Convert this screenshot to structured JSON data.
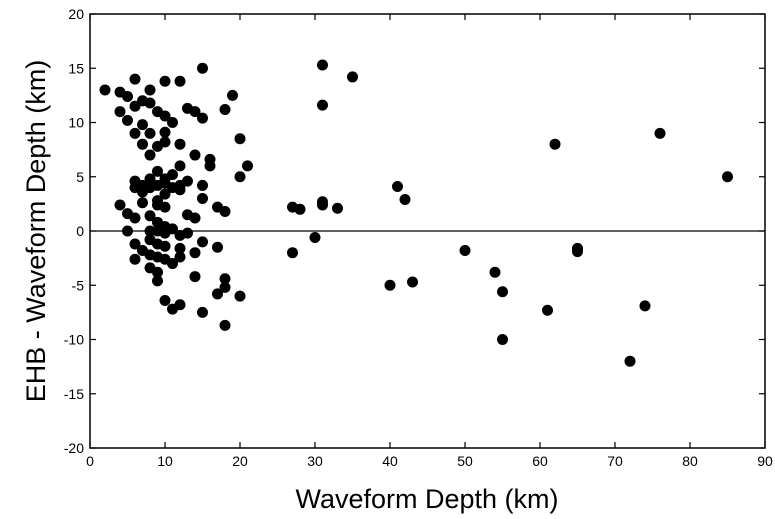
{
  "chart_data": {
    "type": "scatter",
    "title": "",
    "xlabel": "Waveform Depth (km)",
    "ylabel": "EHB - Waveform Depth (km)",
    "xlim": [
      0,
      90
    ],
    "ylim": [
      -20,
      20
    ],
    "xticks": [
      0,
      10,
      20,
      30,
      40,
      50,
      60,
      70,
      80,
      90
    ],
    "yticks": [
      -20,
      -15,
      -10,
      -5,
      0,
      5,
      10,
      15,
      20
    ],
    "zero_line": true,
    "grid": false,
    "legend": "none",
    "marker_color": "#000000",
    "series": [
      {
        "points": [
          [
            2,
            13
          ],
          [
            4,
            12.8
          ],
          [
            5,
            12.4
          ],
          [
            6,
            14
          ],
          [
            4,
            11
          ],
          [
            6,
            11.5
          ],
          [
            5,
            10.2
          ],
          [
            6,
            9
          ],
          [
            8,
            13
          ],
          [
            7,
            12
          ],
          [
            8,
            11.8
          ],
          [
            10,
            13.8
          ],
          [
            12,
            13.8
          ],
          [
            13,
            11.3
          ],
          [
            14,
            11
          ],
          [
            15,
            10.4
          ],
          [
            15,
            15
          ],
          [
            19,
            12.5
          ],
          [
            18,
            11.2
          ],
          [
            20,
            8.5
          ],
          [
            21,
            6
          ],
          [
            20,
            5
          ],
          [
            16,
            6.6
          ],
          [
            16,
            6
          ],
          [
            14,
            7
          ],
          [
            12,
            8
          ],
          [
            10,
            10.6
          ],
          [
            9,
            11
          ],
          [
            11,
            10
          ],
          [
            7,
            9.8
          ],
          [
            8,
            9
          ],
          [
            10,
            9.1
          ],
          [
            7,
            8
          ],
          [
            9,
            7.8
          ],
          [
            10,
            8.2
          ],
          [
            8,
            7
          ],
          [
            12,
            6
          ],
          [
            15,
            4.2
          ],
          [
            15,
            3
          ],
          [
            13,
            4.6
          ],
          [
            12,
            4.2
          ],
          [
            11,
            5.2
          ],
          [
            10,
            4.8
          ],
          [
            9,
            5.5
          ],
          [
            8,
            4.8
          ],
          [
            7,
            4.2
          ],
          [
            6,
            4.6
          ],
          [
            6,
            4
          ],
          [
            7,
            3.6
          ],
          [
            8,
            4
          ],
          [
            9,
            4.2
          ],
          [
            10,
            4.4
          ],
          [
            11,
            4
          ],
          [
            12,
            3.8
          ],
          [
            10,
            3.4
          ],
          [
            9,
            2.8
          ],
          [
            7,
            2.6
          ],
          [
            4,
            2.4
          ],
          [
            5,
            1.6
          ],
          [
            6,
            1.2
          ],
          [
            8,
            1.4
          ],
          [
            9,
            2.4
          ],
          [
            10,
            2.2
          ],
          [
            13,
            1.5
          ],
          [
            14,
            1.2
          ],
          [
            17,
            2.2
          ],
          [
            18,
            1.8
          ],
          [
            9,
            0.8
          ],
          [
            10,
            0.4
          ],
          [
            5,
            0
          ],
          [
            8,
            0
          ],
          [
            9,
            0
          ],
          [
            10,
            -0.2
          ],
          [
            11,
            0.2
          ],
          [
            12,
            -0.4
          ],
          [
            13,
            -0.2
          ],
          [
            15,
            -1
          ],
          [
            17,
            -1.5
          ],
          [
            8,
            -0.8
          ],
          [
            9,
            -1.2
          ],
          [
            10,
            -1.4
          ],
          [
            12,
            -1.6
          ],
          [
            14,
            -2
          ],
          [
            6,
            -1.2
          ],
          [
            7,
            -1.8
          ],
          [
            8,
            -2.2
          ],
          [
            9,
            -2.4
          ],
          [
            10,
            -2.6
          ],
          [
            11,
            -3
          ],
          [
            12,
            -2.4
          ],
          [
            6,
            -2.6
          ],
          [
            8,
            -3.4
          ],
          [
            9,
            -3.8
          ],
          [
            9,
            -4.6
          ],
          [
            14,
            -4.2
          ],
          [
            18,
            -4.4
          ],
          [
            18,
            -5.2
          ],
          [
            17,
            -5.8
          ],
          [
            20,
            -6
          ],
          [
            10,
            -6.4
          ],
          [
            12,
            -6.8
          ],
          [
            11,
            -7.2
          ],
          [
            15,
            -7.5
          ],
          [
            18,
            -8.7
          ],
          [
            27,
            2.2
          ],
          [
            28,
            2
          ],
          [
            31,
            2.4
          ],
          [
            31,
            2.7
          ],
          [
            33,
            2.1
          ],
          [
            27,
            -2
          ],
          [
            30,
            -0.6
          ],
          [
            31,
            15.3
          ],
          [
            31,
            11.6
          ],
          [
            35,
            14.2
          ],
          [
            41,
            4.1
          ],
          [
            42,
            2.9
          ],
          [
            40,
            -5
          ],
          [
            43,
            -4.7
          ],
          [
            50,
            -1.8
          ],
          [
            54,
            -3.8
          ],
          [
            55,
            -5.6
          ],
          [
            55,
            -10
          ],
          [
            61,
            -7.3
          ],
          [
            62,
            8
          ],
          [
            65,
            -1.6
          ],
          [
            65,
            -1.9
          ],
          [
            72,
            -12
          ],
          [
            74,
            -6.9
          ],
          [
            76,
            9
          ],
          [
            85,
            5
          ]
        ]
      }
    ]
  }
}
